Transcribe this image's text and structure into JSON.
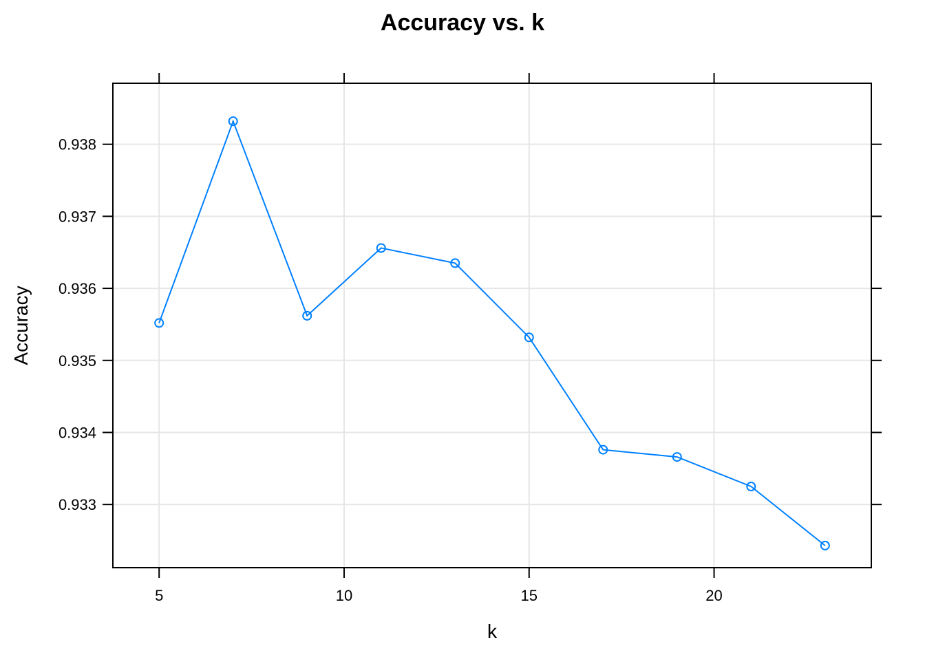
{
  "chart_data": {
    "type": "line",
    "title": "Accuracy vs. k",
    "xlabel": "k",
    "ylabel": "Accuracy",
    "x": [
      5,
      7,
      9,
      11,
      13,
      15,
      17,
      19,
      21,
      23
    ],
    "series": [
      {
        "values": [
          0.93552,
          0.93832,
          0.93562,
          0.93656,
          0.93635,
          0.93532,
          0.93376,
          0.93366,
          0.93325,
          0.93243
        ]
      }
    ],
    "xlim": [
      3.75,
      24.25
    ],
    "ylim": [
      0.932123,
      0.938847
    ],
    "xticks": [
      5,
      10,
      15,
      20
    ],
    "xtick_labels": [
      "5",
      "10",
      "15",
      "20"
    ],
    "yticks": [
      0.933,
      0.934,
      0.935,
      0.936,
      0.937,
      0.938
    ],
    "ytick_labels": [
      "0.933",
      "0.934",
      "0.935",
      "0.936",
      "0.937",
      "0.938"
    ],
    "grid": true,
    "marker": "open-circle",
    "colors": {
      "series": "#0080ff",
      "grid": "#e6e6e6",
      "axis": "#000000"
    }
  }
}
